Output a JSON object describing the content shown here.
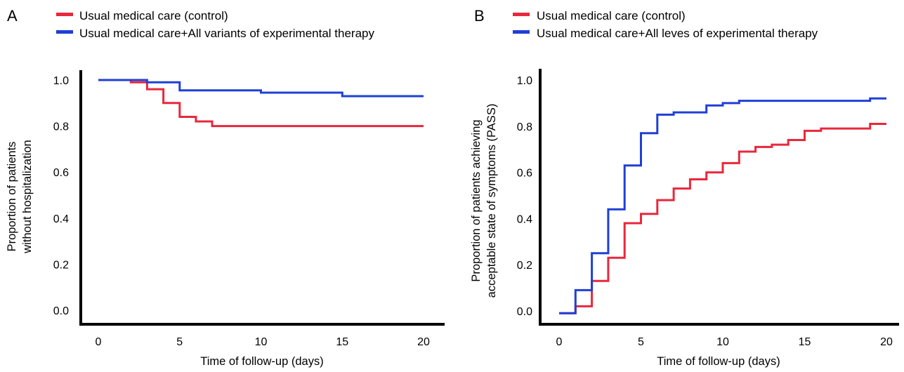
{
  "chart_data": [
    {
      "panel": "A",
      "type": "line",
      "step": true,
      "xlabel": "Time of follow-up (days)",
      "ylabel": [
        "Proportion of patients",
        "without hospitalization"
      ],
      "xlim": [
        0,
        20
      ],
      "ylim": [
        0,
        1
      ],
      "xticks": [
        "0",
        "5",
        "10",
        "15",
        "20"
      ],
      "yticks": [
        "0.0",
        "0.2",
        "0.4",
        "0.6",
        "0.8",
        "1.0"
      ],
      "legend": "top-left",
      "grid": false,
      "series": [
        {
          "name": "Usual medical care (control)",
          "color": "#e8283c",
          "points": [
            [
              0,
              1.0
            ],
            [
              2,
              1.0
            ],
            [
              2,
              0.99
            ],
            [
              3,
              0.99
            ],
            [
              3,
              0.96
            ],
            [
              4,
              0.96
            ],
            [
              4,
              0.9
            ],
            [
              5,
              0.9
            ],
            [
              5,
              0.84
            ],
            [
              6,
              0.84
            ],
            [
              6,
              0.82
            ],
            [
              7,
              0.82
            ],
            [
              7,
              0.8
            ],
            [
              20,
              0.8
            ]
          ]
        },
        {
          "name": "Usual medical care+All variants of experimental therapy",
          "color": "#1f3fd6",
          "points": [
            [
              0,
              1.0
            ],
            [
              3,
              1.0
            ],
            [
              3,
              0.99
            ],
            [
              5,
              0.99
            ],
            [
              5,
              0.955
            ],
            [
              10,
              0.955
            ],
            [
              10,
              0.945
            ],
            [
              15,
              0.945
            ],
            [
              15,
              0.93
            ],
            [
              20,
              0.93
            ]
          ]
        }
      ]
    },
    {
      "panel": "B",
      "type": "line",
      "step": true,
      "xlabel": "Time of follow-up (days)",
      "ylabel": [
        "Proportion of patients achieving",
        "acceptable state of symptoms (PASS)"
      ],
      "xlim": [
        0,
        20
      ],
      "ylim": [
        0,
        1
      ],
      "xticks": [
        "0",
        "5",
        "10",
        "15",
        "20"
      ],
      "yticks": [
        "0.0",
        "0.2",
        "0.4",
        "0.6",
        "0.8",
        "1.0"
      ],
      "legend": "top-left",
      "grid": false,
      "series": [
        {
          "name": "Usual medical care (control)",
          "color": "#e8283c",
          "points": [
            [
              0,
              -0.01
            ],
            [
              1,
              -0.01
            ],
            [
              1,
              0.02
            ],
            [
              2,
              0.02
            ],
            [
              2,
              0.13
            ],
            [
              3,
              0.13
            ],
            [
              3,
              0.23
            ],
            [
              4,
              0.23
            ],
            [
              4,
              0.38
            ],
            [
              5,
              0.38
            ],
            [
              5,
              0.42
            ],
            [
              6,
              0.42
            ],
            [
              6,
              0.48
            ],
            [
              7,
              0.48
            ],
            [
              7,
              0.53
            ],
            [
              8,
              0.53
            ],
            [
              8,
              0.57
            ],
            [
              9,
              0.57
            ],
            [
              9,
              0.6
            ],
            [
              10,
              0.6
            ],
            [
              10,
              0.64
            ],
            [
              11,
              0.64
            ],
            [
              11,
              0.69
            ],
            [
              12,
              0.69
            ],
            [
              12,
              0.71
            ],
            [
              13,
              0.71
            ],
            [
              13,
              0.72
            ],
            [
              14,
              0.72
            ],
            [
              14,
              0.74
            ],
            [
              15,
              0.74
            ],
            [
              15,
              0.78
            ],
            [
              16,
              0.78
            ],
            [
              16,
              0.79
            ],
            [
              19,
              0.79
            ],
            [
              19,
              0.81
            ],
            [
              20,
              0.81
            ]
          ]
        },
        {
          "name": "Usual medical care+All leves of experimental therapy",
          "color": "#1f3fd6",
          "points": [
            [
              0,
              -0.01
            ],
            [
              1,
              -0.01
            ],
            [
              1,
              0.09
            ],
            [
              2,
              0.09
            ],
            [
              2,
              0.25
            ],
            [
              3,
              0.25
            ],
            [
              3,
              0.44
            ],
            [
              4,
              0.44
            ],
            [
              4,
              0.63
            ],
            [
              5,
              0.63
            ],
            [
              5,
              0.77
            ],
            [
              6,
              0.77
            ],
            [
              6,
              0.85
            ],
            [
              7,
              0.85
            ],
            [
              7,
              0.86
            ],
            [
              9,
              0.86
            ],
            [
              9,
              0.89
            ],
            [
              10,
              0.89
            ],
            [
              10,
              0.9
            ],
            [
              11,
              0.9
            ],
            [
              11,
              0.91
            ],
            [
              19,
              0.91
            ],
            [
              19,
              0.92
            ],
            [
              20,
              0.92
            ]
          ]
        }
      ]
    }
  ]
}
